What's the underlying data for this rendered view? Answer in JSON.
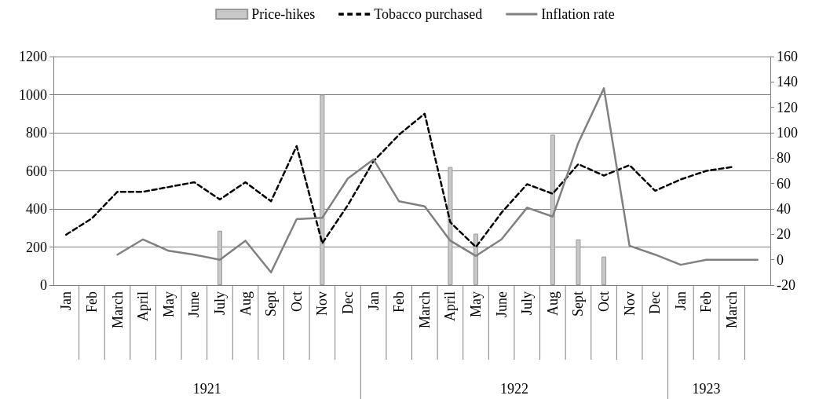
{
  "chart_data": {
    "type": "line",
    "categories": [
      "Jan",
      "Feb",
      "March",
      "April",
      "May",
      "June",
      "July",
      "Aug",
      "Sept",
      "Oct",
      "Nov",
      "Dec",
      "Jan",
      "Feb",
      "March",
      "April",
      "May",
      "June",
      "July",
      "Aug",
      "Sept",
      "Oct",
      "Nov",
      "Dec",
      "Jan",
      "Feb",
      "March",
      null
    ],
    "series": [
      {
        "name": "Price-hikes",
        "type": "bar",
        "color": "#c8c8c8",
        "values": [
          null,
          null,
          null,
          null,
          null,
          null,
          285,
          null,
          null,
          null,
          1000,
          null,
          null,
          null,
          null,
          620,
          270,
          null,
          null,
          790,
          240,
          150,
          null,
          null,
          null,
          null,
          null,
          null
        ]
      },
      {
        "name": "Tobacco purchased",
        "color": "#000000",
        "line_style": "dashed",
        "values": [
          265,
          350,
          490,
          490,
          515,
          540,
          450,
          540,
          440,
          730,
          220,
          420,
          650,
          790,
          900,
          330,
          200,
          380,
          530,
          480,
          635,
          575,
          630,
          495,
          555,
          600,
          620,
          null
        ]
      },
      {
        "name": "Inflation rate",
        "color": "#808080",
        "line_style": "solid",
        "axis": "y2",
        "values": [
          null,
          null,
          4,
          16,
          7,
          4,
          0,
          15,
          -10,
          32,
          33,
          64,
          79,
          46,
          42,
          15,
          3,
          16,
          41,
          34,
          92,
          135,
          11,
          4,
          -4,
          0,
          0,
          0
        ]
      }
    ],
    "annotations": [
      "1921",
      "1922",
      "1923"
    ],
    "ylim": [
      0,
      1200
    ],
    "yticks": [
      0,
      200,
      400,
      600,
      800,
      1000,
      1200
    ],
    "y2lim": [
      -20,
      160
    ],
    "y2ticks": [
      -20,
      0,
      20,
      40,
      60,
      80,
      100,
      120,
      140,
      160
    ],
    "grid": "y",
    "legend": "top",
    "marker": "none"
  }
}
